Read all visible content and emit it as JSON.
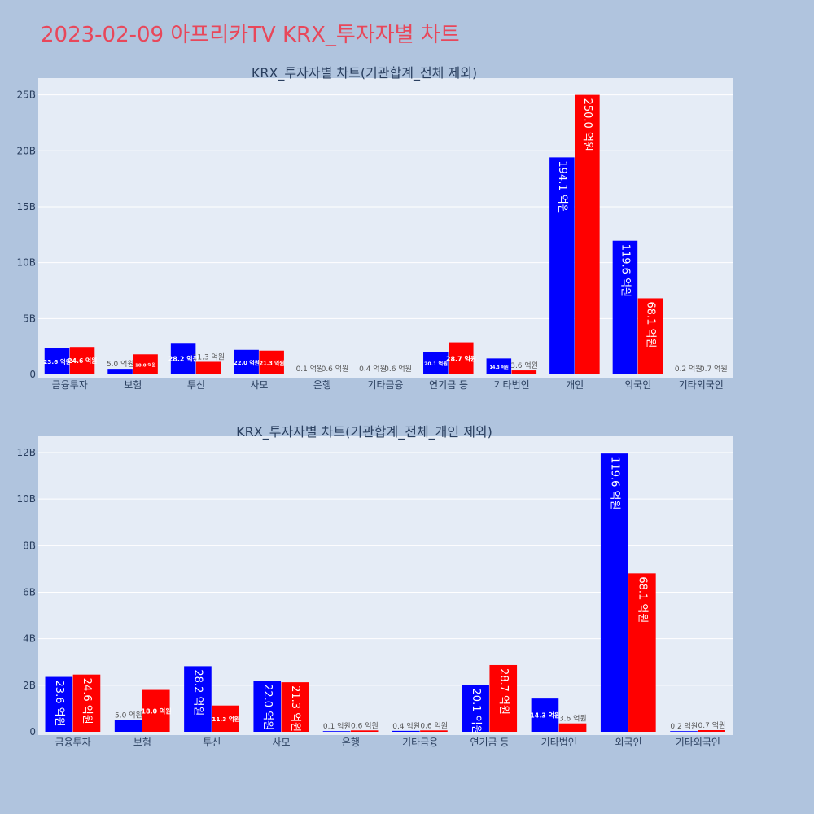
{
  "title": "2023-02-09 아프리카TV KRX_투자자별 차트",
  "colors": {
    "buy": "#0000ff",
    "sell": "#ff0000",
    "plot_bg": "#e5ecf6",
    "page_bg": "#b0c4de",
    "title": "#e8475a"
  },
  "chart_data": [
    {
      "type": "bar",
      "title": "KRX_투자자별 차트(기관합계_전체 제외)",
      "categories": [
        "금융투자",
        "보험",
        "투신",
        "사모",
        "은행",
        "기타금융",
        "연기금 등",
        "기타법인",
        "개인",
        "외국인",
        "기타외국인"
      ],
      "ylim": [
        0,
        26.5
      ],
      "yticks": [
        0,
        5,
        10,
        15,
        20,
        25
      ],
      "ytick_labels": [
        "0",
        "5B",
        "10B",
        "15B",
        "20B",
        "25B"
      ],
      "series": [
        {
          "values": [
            2.36,
            0.5,
            2.82,
            2.2,
            0.01,
            0.04,
            2.01,
            1.43,
            19.41,
            11.96,
            0.02
          ],
          "labels": [
            "23.6 억원",
            "5.0 억원",
            "28.2 억원",
            "22.0 억원",
            "0.1 억원",
            "0.4 억원",
            "20.1 억원",
            "14.3 억원",
            "194.1 억원",
            "119.6 억원",
            "0.2 억원"
          ]
        },
        {
          "values": [
            2.46,
            1.8,
            1.13,
            2.13,
            0.06,
            0.06,
            2.87,
            0.36,
            25.0,
            6.81,
            0.07
          ],
          "labels": [
            "24.6 억원",
            "18.0 억원",
            "11.3 억원",
            "21.3 억원",
            "0.6 억원",
            "0.6 억원",
            "28.7 억원",
            "3.6 억원",
            "250.0 억원",
            "68.1 억원",
            "0.7 억원"
          ]
        }
      ]
    },
    {
      "type": "bar",
      "title": "KRX_투자자별 차트(기관합계_전체_개인 제외)",
      "categories": [
        "금융투자",
        "보험",
        "투신",
        "사모",
        "은행",
        "기타금융",
        "연기금 등",
        "기타법인",
        "외국인",
        "기타외국인"
      ],
      "ylim": [
        0,
        12.7
      ],
      "yticks": [
        0,
        2,
        4,
        6,
        8,
        10,
        12
      ],
      "ytick_labels": [
        "0",
        "2B",
        "4B",
        "6B",
        "8B",
        "10B",
        "12B"
      ],
      "series": [
        {
          "values": [
            2.36,
            0.5,
            2.82,
            2.2,
            0.01,
            0.04,
            2.01,
            1.43,
            11.96,
            0.02
          ],
          "labels": [
            "23.6 억원",
            "5.0 억원",
            "28.2 억원",
            "22.0 억원",
            "0.1 억원",
            "0.4 억원",
            "20.1 억원",
            "14.3 억원",
            "119.6 억원",
            "0.2 억원"
          ]
        },
        {
          "values": [
            2.46,
            1.8,
            1.13,
            2.13,
            0.06,
            0.06,
            2.87,
            0.36,
            6.81,
            0.07
          ],
          "labels": [
            "24.6 억원",
            "18.0 억원",
            "11.3 억원",
            "21.3 억원",
            "0.6 억원",
            "0.6 억원",
            "28.7 억원",
            "3.6 억원",
            "68.1 억원",
            "0.7 억원"
          ]
        }
      ]
    }
  ]
}
